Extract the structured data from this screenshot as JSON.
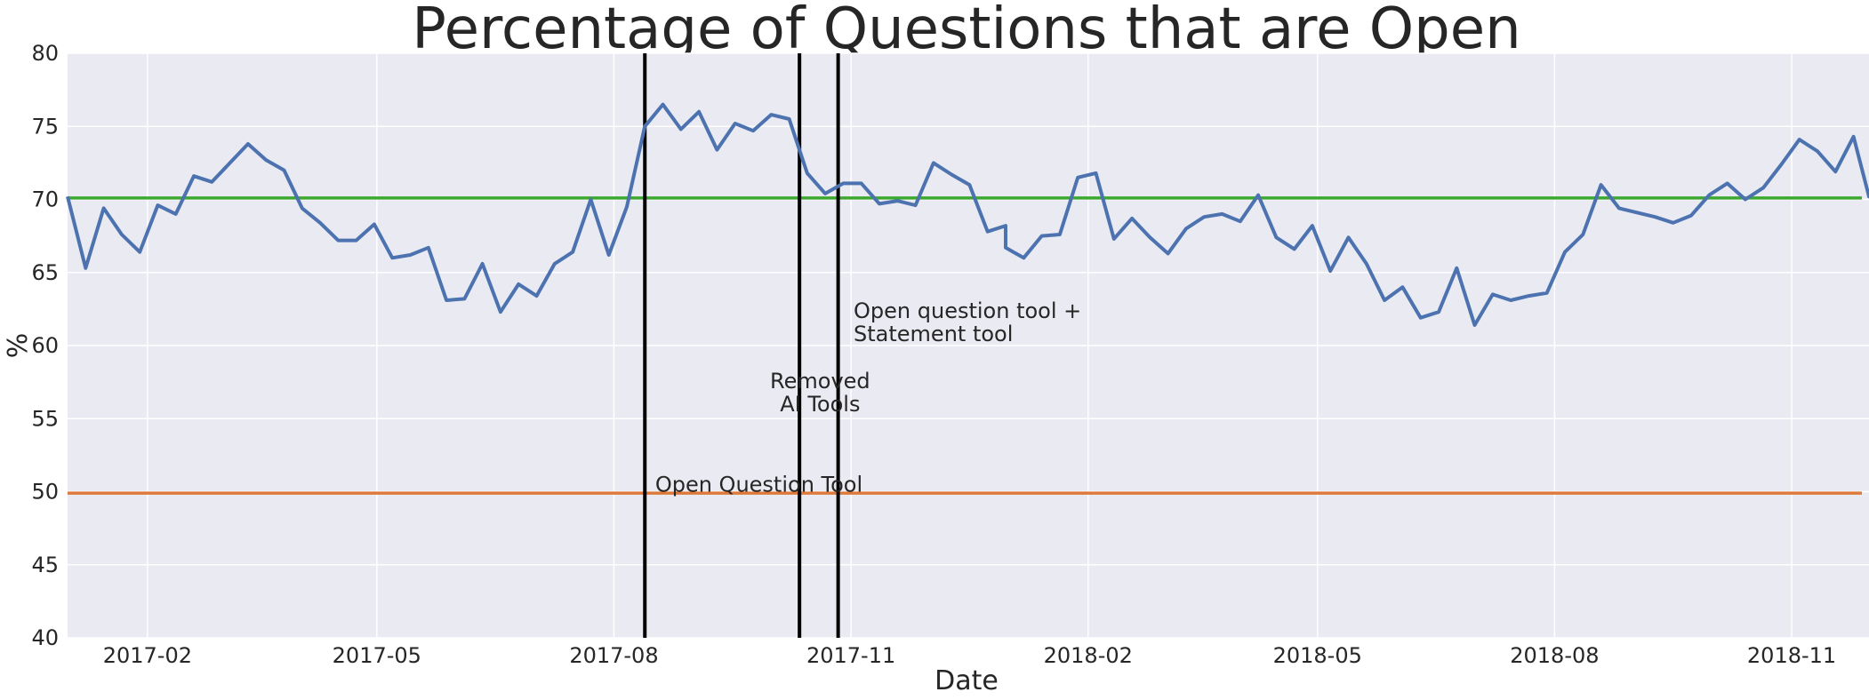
{
  "chart_data": {
    "type": "line",
    "title": "Percentage of Questions that are Open",
    "xlabel": "Date",
    "ylabel": "%",
    "xlim": [
      "2017-01-01",
      "2018-12-01"
    ],
    "ylim": [
      40,
      80
    ],
    "yticks": [
      40,
      45,
      50,
      55,
      60,
      65,
      70,
      75,
      80
    ],
    "xticks": [
      {
        "date": "2017-02-01",
        "label": "2017-02"
      },
      {
        "date": "2017-05-01",
        "label": "2017-05"
      },
      {
        "date": "2017-08-01",
        "label": "2017-08"
      },
      {
        "date": "2017-11-01",
        "label": "2017-11"
      },
      {
        "date": "2018-02-01",
        "label": "2018-02"
      },
      {
        "date": "2018-05-01",
        "label": "2018-05"
      },
      {
        "date": "2018-08-01",
        "label": "2018-08"
      },
      {
        "date": "2018-11-01",
        "label": "2018-11"
      }
    ],
    "grid": true,
    "series": [
      {
        "color": "#4c72b0",
        "points": [
          [
            "2017-01-01",
            70.2
          ],
          [
            "2017-01-08",
            65.3
          ],
          [
            "2017-01-15",
            69.4
          ],
          [
            "2017-01-22",
            67.6
          ],
          [
            "2017-01-29",
            66.4
          ],
          [
            "2017-02-05",
            69.6
          ],
          [
            "2017-02-12",
            69.0
          ],
          [
            "2017-02-19",
            71.6
          ],
          [
            "2017-02-26",
            71.2
          ],
          [
            "2017-03-05",
            72.5
          ],
          [
            "2017-03-12",
            73.8
          ],
          [
            "2017-03-19",
            72.7
          ],
          [
            "2017-03-26",
            72.0
          ],
          [
            "2017-04-02",
            69.4
          ],
          [
            "2017-04-09",
            68.4
          ],
          [
            "2017-04-16",
            67.2
          ],
          [
            "2017-04-23",
            67.2
          ],
          [
            "2017-04-30",
            68.3
          ],
          [
            "2017-05-07",
            66.0
          ],
          [
            "2017-05-14",
            66.2
          ],
          [
            "2017-05-21",
            66.7
          ],
          [
            "2017-05-28",
            63.1
          ],
          [
            "2017-06-04",
            63.2
          ],
          [
            "2017-06-11",
            65.6
          ],
          [
            "2017-06-18",
            62.3
          ],
          [
            "2017-06-25",
            64.2
          ],
          [
            "2017-07-02",
            63.4
          ],
          [
            "2017-07-09",
            65.6
          ],
          [
            "2017-07-16",
            66.4
          ],
          [
            "2017-07-23",
            70.0
          ],
          [
            "2017-07-30",
            66.2
          ],
          [
            "2017-08-06",
            69.5
          ],
          [
            "2017-08-13",
            75.0
          ],
          [
            "2017-08-20",
            76.5
          ],
          [
            "2017-08-27",
            74.8
          ],
          [
            "2017-09-03",
            76.0
          ],
          [
            "2017-09-10",
            73.4
          ],
          [
            "2017-09-17",
            75.2
          ],
          [
            "2017-09-24",
            74.7
          ],
          [
            "2017-10-01",
            75.8
          ],
          [
            "2017-10-08",
            75.5
          ],
          [
            "2017-10-15",
            71.8
          ],
          [
            "2017-10-22",
            70.4
          ],
          [
            "2017-10-29",
            71.1
          ],
          [
            "2017-11-05",
            71.1
          ],
          [
            "2017-11-12",
            69.7
          ],
          [
            "2017-11-19",
            69.9
          ],
          [
            "2017-11-26",
            69.6
          ],
          [
            "2017-12-03",
            72.5
          ],
          [
            "2017-12-10",
            71.7
          ],
          [
            "2017-12-17",
            71.0
          ],
          [
            "2017-12-24",
            67.8
          ],
          [
            "2017-12-31",
            68.2
          ],
          [
            "2017-12-31",
            66.7
          ],
          [
            "2018-01-07",
            66.0
          ],
          [
            "2018-01-14",
            67.5
          ],
          [
            "2018-01-21",
            67.6
          ],
          [
            "2018-01-28",
            71.5
          ],
          [
            "2018-02-04",
            71.8
          ],
          [
            "2018-02-11",
            67.3
          ],
          [
            "2018-02-18",
            68.7
          ],
          [
            "2018-02-25",
            67.4
          ],
          [
            "2018-03-04",
            66.3
          ],
          [
            "2018-03-11",
            68.0
          ],
          [
            "2018-03-18",
            68.8
          ],
          [
            "2018-03-25",
            69.0
          ],
          [
            "2018-04-01",
            68.5
          ],
          [
            "2018-04-08",
            70.3
          ],
          [
            "2018-04-15",
            67.4
          ],
          [
            "2018-04-22",
            66.6
          ],
          [
            "2018-04-29",
            68.2
          ],
          [
            "2018-05-06",
            65.1
          ],
          [
            "2018-05-13",
            67.4
          ],
          [
            "2018-05-20",
            65.6
          ],
          [
            "2018-05-27",
            63.1
          ],
          [
            "2018-06-03",
            64.0
          ],
          [
            "2018-06-10",
            61.9
          ],
          [
            "2018-06-17",
            62.3
          ],
          [
            "2018-06-24",
            65.3
          ],
          [
            "2018-07-01",
            61.4
          ],
          [
            "2018-07-08",
            63.5
          ],
          [
            "2018-07-15",
            63.1
          ],
          [
            "2018-07-22",
            63.4
          ],
          [
            "2018-07-29",
            63.6
          ],
          [
            "2018-08-05",
            66.4
          ],
          [
            "2018-08-12",
            67.6
          ],
          [
            "2018-08-19",
            71.0
          ],
          [
            "2018-08-26",
            69.4
          ],
          [
            "2018-09-02",
            69.1
          ],
          [
            "2018-09-09",
            68.8
          ],
          [
            "2018-09-16",
            68.4
          ],
          [
            "2018-09-23",
            68.9
          ],
          [
            "2018-09-30",
            70.3
          ],
          [
            "2018-10-07",
            71.1
          ],
          [
            "2018-10-14",
            70.0
          ],
          [
            "2018-10-21",
            70.8
          ],
          [
            "2018-10-28",
            72.4
          ],
          [
            "2018-11-04",
            74.1
          ],
          [
            "2018-11-11",
            73.3
          ],
          [
            "2018-11-18",
            71.9
          ],
          [
            "2018-11-25",
            74.3
          ],
          [
            "2018-12-01",
            70.2
          ],
          [
            "2018-12-04",
            71.1
          ]
        ]
      }
    ],
    "hlines": [
      {
        "y": 70.1,
        "color": "#3da82f"
      },
      {
        "y": 49.9,
        "color": "#dd7a3b"
      }
    ],
    "vlines": [
      {
        "x": "2017-08-13",
        "color": "#000000"
      },
      {
        "x": "2017-10-12",
        "color": "#000000"
      },
      {
        "x": "2017-10-27",
        "color": "#000000"
      }
    ],
    "annotations": [
      {
        "x": "2017-08-17",
        "y": 50.0,
        "lines": [
          "Open Question Tool"
        ],
        "align": "start"
      },
      {
        "x": "2017-10-20",
        "y": 55.5,
        "lines": [
          "Removed",
          "AI Tools"
        ],
        "align": "middle"
      },
      {
        "x": "2017-11-02",
        "y": 60.3,
        "lines": [
          "Open question tool +",
          "Statement tool"
        ],
        "align": "start"
      }
    ]
  }
}
